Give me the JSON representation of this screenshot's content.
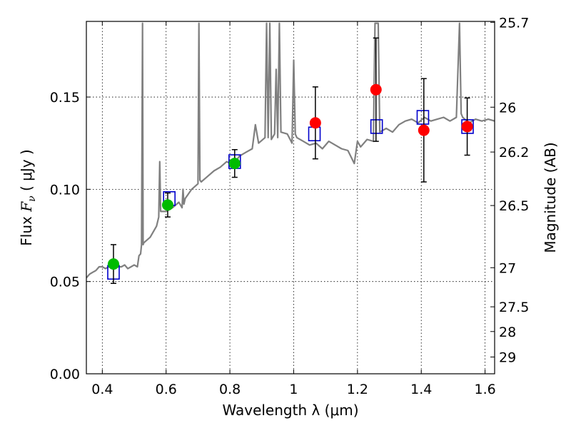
{
  "chart_data": {
    "type": "scatter",
    "xlabel": "Wavelength  λ (μm)",
    "ylabel_prefix": "Flux  ",
    "ylabel_symbol": "F",
    "ylabel_sub": "ν",
    "ylabel_unit": "  ( μJy )",
    "y2label": "Magnitude (AB)",
    "xlim": [
      0.35,
      1.63
    ],
    "ylim": [
      0.0,
      0.191
    ],
    "grid": true,
    "x_ticks": [
      {
        "value": 0.4,
        "label": "0.4"
      },
      {
        "value": 0.6,
        "label": "0.6"
      },
      {
        "value": 0.8,
        "label": "0.8"
      },
      {
        "value": 1.0,
        "label": "1"
      },
      {
        "value": 1.2,
        "label": "1.2"
      },
      {
        "value": 1.4,
        "label": "1.4"
      },
      {
        "value": 1.6,
        "label": "1.6"
      }
    ],
    "y_ticks": [
      {
        "value": 0.0,
        "label": "0.00"
      },
      {
        "value": 0.05,
        "label": "0.05"
      },
      {
        "value": 0.1,
        "label": "0.10"
      },
      {
        "value": 0.15,
        "label": "0.15"
      }
    ],
    "y2_ticks": [
      {
        "flux": 0.1905,
        "label": "25.7"
      },
      {
        "flux": 0.1445,
        "label": "26"
      },
      {
        "flux": 0.1202,
        "label": "26.2"
      },
      {
        "flux": 0.0912,
        "label": "26.5"
      },
      {
        "flux": 0.0575,
        "label": "27"
      },
      {
        "flux": 0.0363,
        "label": "27.5"
      },
      {
        "flux": 0.0229,
        "label": "28"
      },
      {
        "flux": 0.0091,
        "label": "29"
      }
    ],
    "series": [
      {
        "kind": "spectrum",
        "color": "#808080",
        "x": [
          0.35,
          0.36,
          0.37,
          0.38,
          0.39,
          0.4,
          0.41,
          0.42,
          0.43,
          0.44,
          0.45,
          0.46,
          0.47,
          0.48,
          0.49,
          0.5,
          0.51,
          0.515,
          0.52,
          0.523,
          0.526,
          0.528,
          0.53,
          0.55,
          0.57,
          0.577,
          0.58,
          0.583,
          0.6,
          0.62,
          0.64,
          0.65,
          0.653,
          0.656,
          0.66,
          0.68,
          0.7,
          0.703,
          0.706,
          0.71,
          0.73,
          0.75,
          0.77,
          0.79,
          0.81,
          0.83,
          0.85,
          0.87,
          0.88,
          0.89,
          0.91,
          0.915,
          0.92,
          0.925,
          0.93,
          0.94,
          0.945,
          0.95,
          0.955,
          0.96,
          0.98,
          0.995,
          1.0,
          1.005,
          1.01,
          1.03,
          1.05,
          1.07,
          1.09,
          1.11,
          1.13,
          1.15,
          1.17,
          1.19,
          1.2,
          1.21,
          1.23,
          1.25,
          1.255,
          1.26,
          1.265,
          1.27,
          1.29,
          1.31,
          1.33,
          1.35,
          1.37,
          1.39,
          1.41,
          1.43,
          1.45,
          1.47,
          1.49,
          1.51,
          1.52,
          1.525,
          1.53,
          1.55,
          1.57,
          1.59,
          1.61,
          1.63
        ],
        "y": [
          0.052,
          0.054,
          0.055,
          0.056,
          0.058,
          0.058,
          0.057,
          0.058,
          0.059,
          0.057,
          0.058,
          0.058,
          0.059,
          0.057,
          0.058,
          0.059,
          0.058,
          0.064,
          0.065,
          0.07,
          0.19,
          0.07,
          0.071,
          0.074,
          0.08,
          0.085,
          0.115,
          0.088,
          0.088,
          0.09,
          0.093,
          0.09,
          0.1,
          0.092,
          0.095,
          0.1,
          0.103,
          0.19,
          0.105,
          0.104,
          0.107,
          0.11,
          0.112,
          0.115,
          0.113,
          0.118,
          0.12,
          0.122,
          0.135,
          0.125,
          0.128,
          0.19,
          0.128,
          0.19,
          0.127,
          0.13,
          0.165,
          0.128,
          0.19,
          0.131,
          0.13,
          0.125,
          0.17,
          0.13,
          0.128,
          0.126,
          0.124,
          0.125,
          0.122,
          0.126,
          0.124,
          0.122,
          0.121,
          0.114,
          0.126,
          0.123,
          0.127,
          0.126,
          0.19,
          0.19,
          0.19,
          0.131,
          0.133,
          0.131,
          0.135,
          0.137,
          0.138,
          0.136,
          0.139,
          0.137,
          0.138,
          0.139,
          0.137,
          0.139,
          0.19,
          0.141,
          0.139,
          0.136,
          0.138,
          0.137,
          0.138,
          0.137
        ]
      },
      {
        "kind": "model-boxes",
        "color": "#0000cc",
        "x": [
          0.435,
          0.61,
          0.815,
          1.065,
          1.26,
          1.405,
          1.545
        ],
        "y": [
          0.055,
          0.095,
          0.115,
          0.13,
          0.134,
          0.139,
          0.134
        ]
      },
      {
        "kind": "observed-green",
        "color": "#00bb00",
        "x": [
          0.435,
          0.605,
          0.815
        ],
        "y": [
          0.0595,
          0.0915,
          0.114
        ],
        "yerr": [
          0.0105,
          0.0065,
          0.0075
        ]
      },
      {
        "kind": "observed-red",
        "color": "#ff0000",
        "x": [
          1.068,
          1.258,
          1.408,
          1.544
        ],
        "y": [
          0.136,
          0.154,
          0.132,
          0.134
        ],
        "yerr": [
          0.0195,
          0.028,
          0.028,
          0.0155
        ]
      }
    ]
  }
}
